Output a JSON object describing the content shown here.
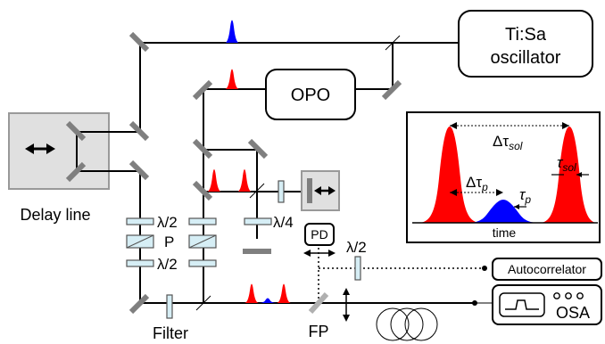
{
  "labels": {
    "tisa_line1": "Ti:Sa",
    "tisa_line2": "oscillator",
    "opo": "OPO",
    "delay_line": "Delay line",
    "filter": "Filter",
    "fp": "FP",
    "pd": "PD",
    "autocorrelator": "Autocorrelator",
    "osa": "OSA",
    "half_wave_1": "λ/2",
    "polarizer": "P",
    "half_wave_2": "λ/2",
    "quarter_wave": "λ/4",
    "half_wave_3": "λ/2"
  },
  "inset": {
    "delta_tau_sol": "Δτ",
    "delta_tau_sol_sub": "sol",
    "delta_tau_p": "Δτ",
    "delta_tau_p_sub": "p",
    "tau_p": "τ",
    "tau_p_sub": "p",
    "tau_sol": "τ",
    "tau_sol_sub": "sol",
    "time_axis": "time"
  },
  "colors": {
    "soliton": "#ff0000",
    "pump": "#0000ff",
    "mirror": "#7f7f7f",
    "delay_stage": "#e0e0e0",
    "waveplate": "#d6eef5"
  }
}
